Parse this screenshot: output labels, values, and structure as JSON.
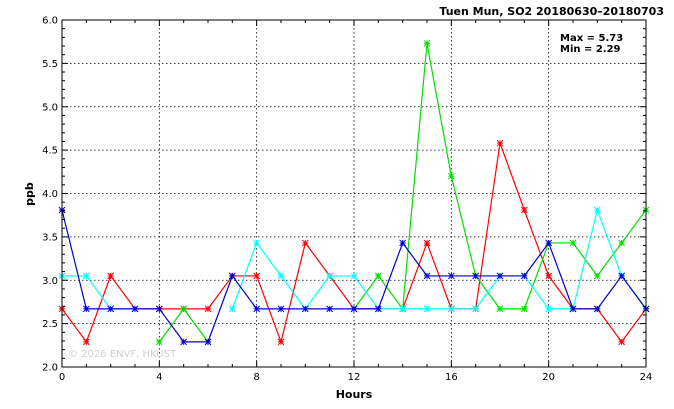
{
  "chart_data": {
    "type": "line",
    "title": "Tuen Mun, SO2 20180630–20180703",
    "xlabel": "Hours",
    "ylabel": "ppb",
    "xlim": [
      0,
      24
    ],
    "ylim": [
      2.0,
      6.0
    ],
    "xticks": [
      0,
      4,
      8,
      12,
      16,
      20,
      24
    ],
    "yticks": [
      2.0,
      2.5,
      3.0,
      3.5,
      4.0,
      4.5,
      5.0,
      5.5,
      6.0
    ],
    "grid": true,
    "annotations": {
      "max": "Max = 5.73",
      "min": "Min = 2.29"
    },
    "watermark": "© 2026 ENVF, HKUST",
    "x": [
      0,
      1,
      2,
      3,
      4,
      5,
      6,
      7,
      8,
      9,
      10,
      11,
      12,
      13,
      14,
      15,
      16,
      17,
      18,
      19,
      20,
      21,
      22,
      23,
      24
    ],
    "series": [
      {
        "color": "#ff0000",
        "values": [
          2.67,
          2.29,
          3.05,
          2.67,
          2.67,
          2.67,
          2.67,
          3.05,
          3.05,
          2.29,
          3.43,
          3.05,
          2.67,
          2.67,
          2.67,
          3.43,
          2.67,
          2.67,
          4.58,
          3.81,
          3.05,
          2.67,
          2.67,
          2.29,
          2.67
        ]
      },
      {
        "color": "#00dd00",
        "values": [
          null,
          null,
          null,
          null,
          2.29,
          2.67,
          2.29,
          null,
          null,
          null,
          null,
          null,
          2.67,
          3.05,
          2.67,
          5.73,
          4.2,
          3.05,
          2.67,
          2.67,
          3.43,
          3.43,
          3.05,
          3.43,
          3.81
        ]
      },
      {
        "color": "#00ffff",
        "values": [
          3.05,
          3.05,
          2.67,
          2.67,
          null,
          null,
          null,
          2.67,
          3.43,
          3.05,
          2.67,
          3.05,
          3.05,
          2.67,
          2.67,
          2.67,
          2.67,
          2.67,
          3.05,
          3.05,
          2.67,
          2.67,
          3.81,
          3.05,
          2.67
        ]
      },
      {
        "color": "#0000cc",
        "values": [
          3.81,
          2.67,
          2.67,
          2.67,
          2.67,
          2.29,
          2.29,
          3.05,
          2.67,
          2.67,
          2.67,
          2.67,
          2.67,
          2.67,
          3.43,
          3.05,
          3.05,
          3.05,
          3.05,
          3.05,
          3.43,
          2.67,
          2.67,
          3.05,
          2.67
        ]
      }
    ]
  }
}
